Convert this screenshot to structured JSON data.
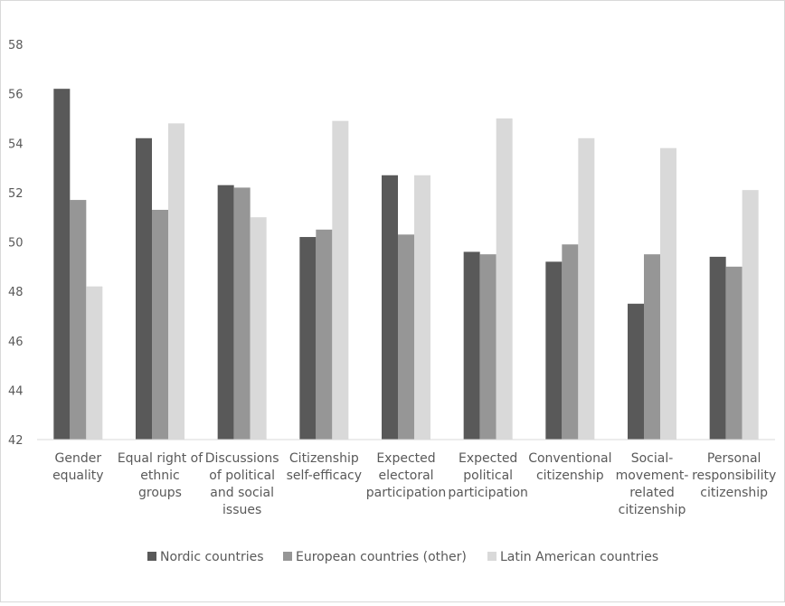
{
  "chart_data": {
    "type": "bar",
    "title": "",
    "xlabel": "",
    "ylabel": "",
    "ylim": [
      42,
      58
    ],
    "yticks": [
      42,
      44,
      46,
      48,
      50,
      52,
      54,
      56,
      58
    ],
    "grid": false,
    "legend_position": "bottom",
    "categories": [
      [
        "Gender",
        "equality"
      ],
      [
        "Equal right of",
        "ethnic",
        "groups"
      ],
      [
        "Discussions",
        "of political",
        "and social",
        "issues"
      ],
      [
        "Citizenship",
        "self-efficacy"
      ],
      [
        "Expected",
        "electoral",
        "participation"
      ],
      [
        "Expected",
        "political",
        "participation"
      ],
      [
        "Conventional",
        "citizenship"
      ],
      [
        "Social-",
        "movement-",
        "related",
        "citizenship"
      ],
      [
        "Personal",
        "responsibility",
        "citizenship"
      ]
    ],
    "series": [
      {
        "name": "Nordic countries",
        "color": "#595959",
        "values": [
          56.2,
          54.2,
          52.3,
          50.2,
          52.7,
          49.6,
          49.2,
          47.5,
          49.4
        ]
      },
      {
        "name": "European countries (other)",
        "color": "#969696",
        "values": [
          51.7,
          51.3,
          52.2,
          50.5,
          50.3,
          49.5,
          49.9,
          49.5,
          49.0
        ]
      },
      {
        "name": "Latin American countries",
        "color": "#d9d9d9",
        "values": [
          48.2,
          54.8,
          51.0,
          54.9,
          52.7,
          55.0,
          54.2,
          53.8,
          52.1
        ]
      }
    ]
  }
}
